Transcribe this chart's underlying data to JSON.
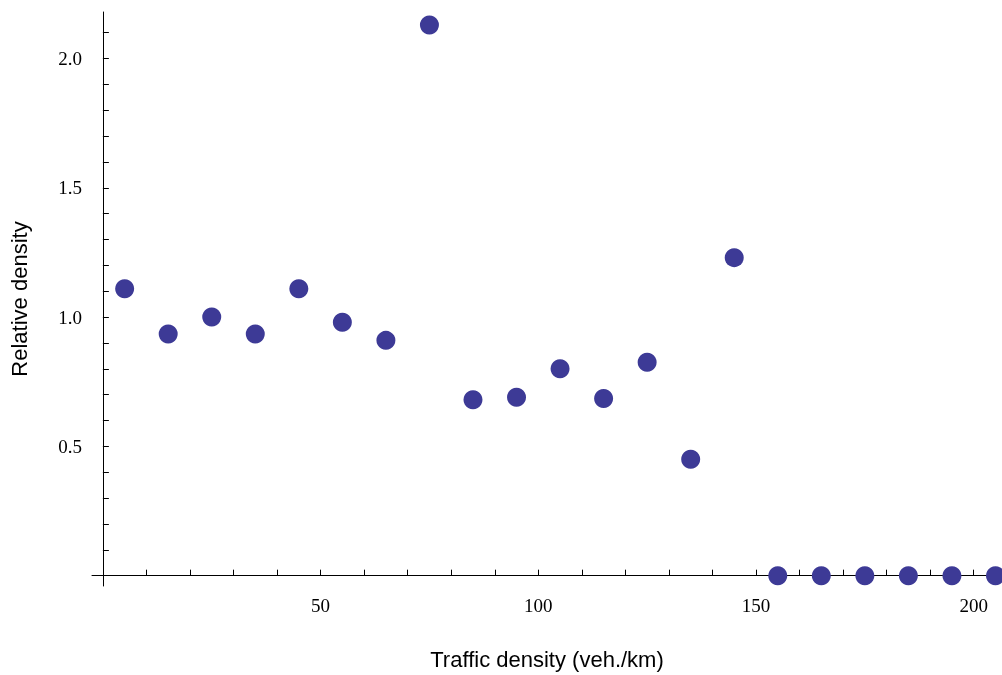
{
  "chart_data": {
    "type": "scatter",
    "xlabel": "Traffic density (veh./km)",
    "ylabel": "Relative density",
    "x": [
      5,
      15,
      25,
      35,
      45,
      55,
      65,
      75,
      85,
      95,
      105,
      115,
      125,
      135,
      145,
      155,
      165,
      175,
      185,
      195,
      205
    ],
    "series": [
      {
        "color": "#3d3a96",
        "values": [
          1.11,
          0.935,
          1.0,
          0.935,
          1.11,
          0.98,
          0.91,
          2.13,
          0.68,
          0.69,
          0.8,
          0.685,
          0.825,
          0.45,
          1.23,
          0,
          0,
          0,
          0,
          0,
          0
        ]
      }
    ],
    "xlim": [
      -2.5,
      206.5
    ],
    "ylim": [
      -0.04,
      2.18
    ],
    "xticks": [
      {
        "value": 10,
        "label": null
      },
      {
        "value": 20,
        "label": null
      },
      {
        "value": 30,
        "label": null
      },
      {
        "value": 40,
        "label": null
      },
      50,
      {
        "value": 60,
        "label": null
      },
      {
        "value": 70,
        "label": null
      },
      {
        "value": 80,
        "label": null
      },
      {
        "value": 90,
        "label": null
      },
      100,
      {
        "value": 110,
        "label": null
      },
      {
        "value": 120,
        "label": null
      },
      {
        "value": 130,
        "label": null
      },
      {
        "value": 140,
        "label": null
      },
      150,
      {
        "value": 160,
        "label": null
      },
      {
        "value": 170,
        "label": null
      },
      {
        "value": 180,
        "label": null
      },
      {
        "value": 190,
        "label": null
      },
      200
    ],
    "yticks": [
      {
        "value": 0.1,
        "label": null
      },
      {
        "value": 0.2,
        "label": null
      },
      {
        "value": 0.3,
        "label": null
      },
      {
        "value": 0.4,
        "label": null
      },
      {
        "value": 0.5,
        "label": "0.5"
      },
      {
        "value": 0.6,
        "label": null
      },
      {
        "value": 0.7,
        "label": null
      },
      {
        "value": 0.8,
        "label": null
      },
      {
        "value": 0.9,
        "label": null
      },
      {
        "value": 1.0,
        "label": "1.0"
      },
      {
        "value": 1.1,
        "label": null
      },
      {
        "value": 1.2,
        "label": null
      },
      {
        "value": 1.3,
        "label": null
      },
      {
        "value": 1.4,
        "label": null
      },
      {
        "value": 1.5,
        "label": "1.5"
      },
      {
        "value": 1.6,
        "label": null
      },
      {
        "value": 1.7,
        "label": null
      },
      {
        "value": 1.8,
        "label": null
      },
      {
        "value": 1.9,
        "label": null
      },
      {
        "value": 2.0,
        "label": "2.0"
      },
      {
        "value": 2.1,
        "label": null
      }
    ],
    "marker": "circle"
  }
}
